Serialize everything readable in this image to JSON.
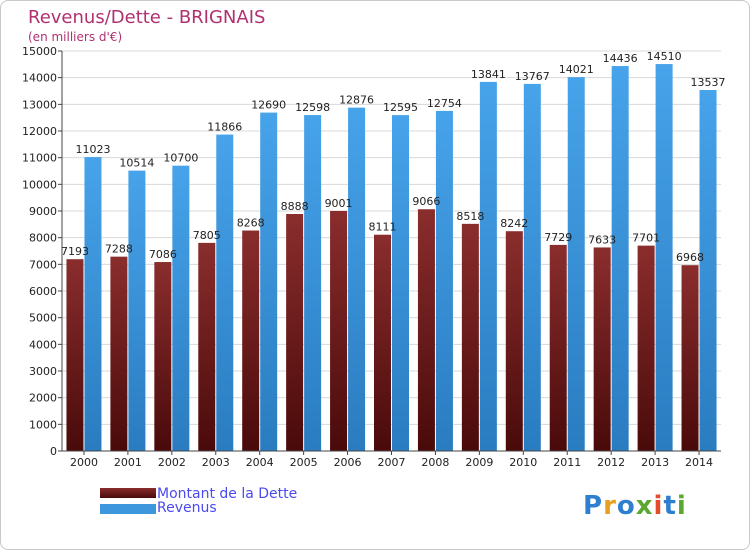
{
  "title": "Revenus/Dette - BRIGNAIS",
  "subtitle": "(en milliers d'€)",
  "logo_text": "Proxiti",
  "chart_data": {
    "type": "bar",
    "title": "Revenus/Dette - BRIGNAIS",
    "subtitle": "(en milliers d'€)",
    "categories": [
      "2000",
      "2001",
      "2002",
      "2003",
      "2004",
      "2005",
      "2006",
      "2007",
      "2008",
      "2009",
      "2010",
      "2011",
      "2012",
      "2013",
      "2014"
    ],
    "series": [
      {
        "name": "Montant de la Dette",
        "color": "#7a1f1f",
        "values": [
          7193,
          7288,
          7086,
          7805,
          8268,
          8888,
          9001,
          8111,
          9066,
          8518,
          8242,
          7729,
          7633,
          7701,
          6968
        ],
        "labels": [
          "7193",
          "7288",
          "7086",
          "7805",
          "8268",
          "8888",
          "9001",
          "8111",
          "9066",
          "8518",
          "8242",
          "7729",
          "7633",
          "7701",
          "6968"
        ]
      },
      {
        "name": "Revenus",
        "color": "#3c97dd",
        "values": [
          11023,
          10514,
          10700,
          11866,
          12690,
          12598,
          12876,
          12595,
          12754,
          13841,
          13767,
          14021,
          14436,
          14510,
          13537
        ],
        "labels": [
          "11023",
          "10514",
          "10700",
          "11866",
          "12690",
          "12598",
          "12876",
          "12595",
          "12754",
          "13841",
          "13767",
          "14021",
          "14436",
          "14510",
          "13537"
        ]
      }
    ],
    "ylim": [
      0,
      15000
    ],
    "ytick_step": 1000,
    "grid": true,
    "legend_position": "bottom-left"
  }
}
